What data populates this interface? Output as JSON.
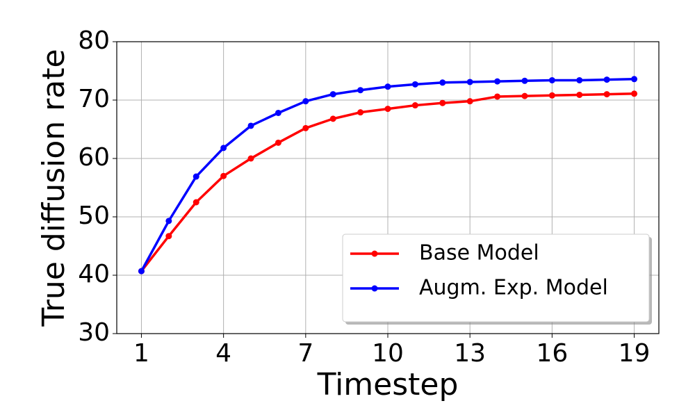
{
  "chart_data": {
    "type": "line",
    "x_label": "Timestep",
    "y_label": "True diffusion rate",
    "x": [
      1,
      2,
      3,
      4,
      5,
      6,
      7,
      8,
      9,
      10,
      11,
      12,
      13,
      14,
      15,
      16,
      17,
      18,
      19
    ],
    "series": [
      {
        "name": "Base Model",
        "color": "#ff0000",
        "values": [
          40.7,
          46.7,
          52.5,
          57.0,
          60.0,
          62.7,
          65.2,
          66.8,
          67.9,
          68.5,
          69.1,
          69.5,
          69.8,
          70.6,
          70.7,
          70.8,
          70.9,
          71.0,
          71.1
        ]
      },
      {
        "name": "Augm. Exp. Model",
        "color": "#0000ff",
        "values": [
          40.7,
          49.3,
          56.9,
          61.8,
          65.6,
          67.8,
          69.8,
          71.0,
          71.7,
          72.3,
          72.7,
          73.0,
          73.1,
          73.2,
          73.3,
          73.4,
          73.4,
          73.5,
          73.6
        ]
      }
    ],
    "xlim": [
      0.1,
      19.9
    ],
    "xticks": [
      1,
      4,
      7,
      10,
      13,
      16,
      19
    ],
    "ylim": [
      30,
      80
    ],
    "yticks": [
      30,
      40,
      50,
      60,
      70,
      80
    ],
    "grid": true,
    "legend_position": "lower right"
  }
}
